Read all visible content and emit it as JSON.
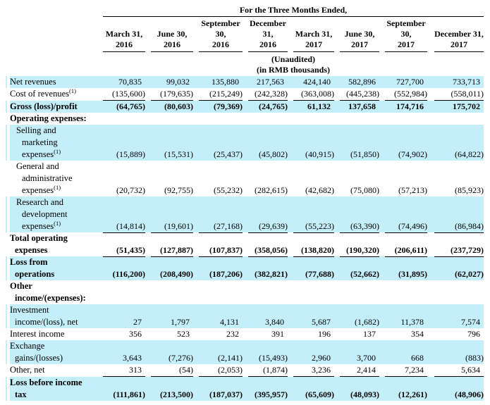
{
  "table": {
    "period_header": "For the Three Months Ended,",
    "unaudited_note": [
      "(Unaudited)",
      "(in RMB thousands)"
    ],
    "columns": [
      [
        "March 31,",
        "2016"
      ],
      [
        "June 30,",
        "2016"
      ],
      [
        "September",
        "30,",
        "2016"
      ],
      [
        "December",
        "31,",
        "2016"
      ],
      [
        "March 31,",
        "2017"
      ],
      [
        "June 30,",
        "2017"
      ],
      [
        "September",
        "30,",
        "2017"
      ],
      [
        "December 31,",
        "2017"
      ]
    ],
    "highlight_color": "#c5eefb",
    "rows": [
      {
        "label": [
          "Net revenues"
        ],
        "sup": null,
        "bold": false,
        "indent": false,
        "bg": true,
        "underline": false,
        "values": [
          "70,835",
          "99,032",
          "135,880",
          "217,563",
          "424,140",
          "582,896",
          "727,700",
          "733,713"
        ]
      },
      {
        "label": [
          "Cost of revenues"
        ],
        "sup": "(1)",
        "bold": false,
        "indent": false,
        "bg": false,
        "underline": true,
        "values": [
          "(135,600)",
          "(179,635)",
          "(215,249)",
          "(242,328)",
          "(363,008)",
          "(445,238)",
          "(552,984)",
          "(558,011)"
        ]
      },
      {
        "label": [
          "Gross (loss)/profit"
        ],
        "sup": null,
        "bold": true,
        "indent": false,
        "bg": true,
        "underline": false,
        "values": [
          "(64,765)",
          "(80,603)",
          "(79,369)",
          "(24,765)",
          "61,132",
          "137,658",
          "174,716",
          "175,702"
        ]
      },
      {
        "label": [
          "Operating expenses:"
        ],
        "sup": null,
        "bold": true,
        "indent": false,
        "bg": false,
        "underline": false,
        "values": []
      },
      {
        "label": [
          "Selling and",
          "marketing",
          "expenses"
        ],
        "sup": "(1)",
        "bold": false,
        "indent": true,
        "bg": true,
        "underline": false,
        "values": [
          "(15,889)",
          "(15,531)",
          "(25,437)",
          "(45,802)",
          "(40,915)",
          "(51,850)",
          "(74,902)",
          "(64,822)"
        ]
      },
      {
        "label": [
          "General and",
          "administrative",
          "expenses"
        ],
        "sup": "(1)",
        "bold": false,
        "indent": true,
        "bg": false,
        "underline": false,
        "values": [
          "(20,732)",
          "(92,755)",
          "(55,232)",
          "(282,615)",
          "(42,682)",
          "(75,080)",
          "(57,213)",
          "(85,923)"
        ]
      },
      {
        "label": [
          "Research and",
          "development",
          "expenses"
        ],
        "sup": "(1)",
        "bold": false,
        "indent": true,
        "bg": true,
        "underline": true,
        "values": [
          "(14,814)",
          "(19,601)",
          "(27,168)",
          "(29,639)",
          "(55,223)",
          "(63,390)",
          "(74,496)",
          "(86,984)"
        ]
      },
      {
        "label": [
          "Total operating",
          "expenses"
        ],
        "sup": null,
        "bold": true,
        "indent": false,
        "bg": false,
        "underline": true,
        "values": [
          "(51,435)",
          "(127,887)",
          "(107,837)",
          "(358,056)",
          "(138,820)",
          "(190,320)",
          "(206,611)",
          "(237,729)"
        ]
      },
      {
        "label": [
          "Loss from",
          "operations"
        ],
        "sup": null,
        "bold": true,
        "indent": false,
        "bg": true,
        "underline": false,
        "values": [
          "(116,200)",
          "(208,490)",
          "(187,206)",
          "(382,821)",
          "(77,688)",
          "(52,662)",
          "(31,895)",
          "(62,027)"
        ]
      },
      {
        "label": [
          "Other",
          "income/(expenses):"
        ],
        "sup": null,
        "bold": true,
        "indent": false,
        "bg": false,
        "underline": false,
        "values": []
      },
      {
        "label": [
          "Investment",
          "income/(loss), net"
        ],
        "sup": null,
        "bold": false,
        "indent": false,
        "bg": true,
        "underline": false,
        "values": [
          "27",
          "1,797",
          "4,131",
          "3,840",
          "5,687",
          "(1,682)",
          "11,378",
          "7,574"
        ]
      },
      {
        "label": [
          "Interest income"
        ],
        "sup": null,
        "bold": false,
        "indent": false,
        "bg": false,
        "underline": false,
        "values": [
          "356",
          "523",
          "232",
          "391",
          "196",
          "137",
          "354",
          "796"
        ]
      },
      {
        "label": [
          "Exchange",
          "gains/(losses)"
        ],
        "sup": null,
        "bold": false,
        "indent": false,
        "bg": true,
        "underline": false,
        "values": [
          "3,643",
          "(7,276)",
          "(2,141)",
          "(15,493)",
          "2,960",
          "3,700",
          "668",
          "(883)"
        ]
      },
      {
        "label": [
          "Other, net"
        ],
        "sup": null,
        "bold": false,
        "indent": false,
        "bg": false,
        "underline": true,
        "values": [
          "313",
          "(54)",
          "(2,053)",
          "(1,874)",
          "3,236",
          "2,414",
          "7,234",
          "5,634"
        ]
      },
      {
        "label": [
          "Loss before income",
          "tax"
        ],
        "sup": null,
        "bold": true,
        "indent": false,
        "bg": true,
        "underline": false,
        "values": [
          "(111,861)",
          "(213,500)",
          "(187,037)",
          "(395,957)",
          "(65,609)",
          "(48,093)",
          "(12,261)",
          "(48,906)"
        ]
      }
    ]
  }
}
